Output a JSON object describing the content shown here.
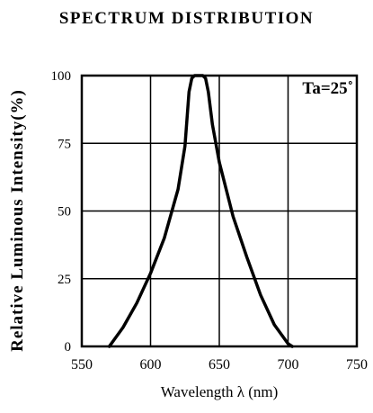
{
  "chart_data": {
    "type": "line",
    "title": "SPECTRUM DISTRIBUTION",
    "xlabel": "Wavelength λ (nm)",
    "ylabel": "Relative Luminous Intensity(%)",
    "annotation": "Ta=25˚",
    "xlim": [
      550,
      750
    ],
    "ylim": [
      0,
      100
    ],
    "xticks": [
      550,
      600,
      650,
      700,
      750
    ],
    "yticks": [
      0,
      25,
      50,
      75,
      100
    ],
    "grid": true,
    "line_color": "#000000",
    "series": [
      {
        "x": [
          570,
          580,
          590,
          600,
          610,
          620,
          625,
          628,
          630,
          632,
          635,
          638,
          640,
          642,
          645,
          650,
          660,
          670,
          680,
          690,
          700,
          703
        ],
        "y": [
          0,
          7,
          16,
          27,
          40,
          58,
          74,
          94,
          99,
          100,
          100,
          100,
          99,
          94,
          82,
          68,
          48,
          33,
          19,
          8,
          1,
          0
        ]
      }
    ]
  }
}
